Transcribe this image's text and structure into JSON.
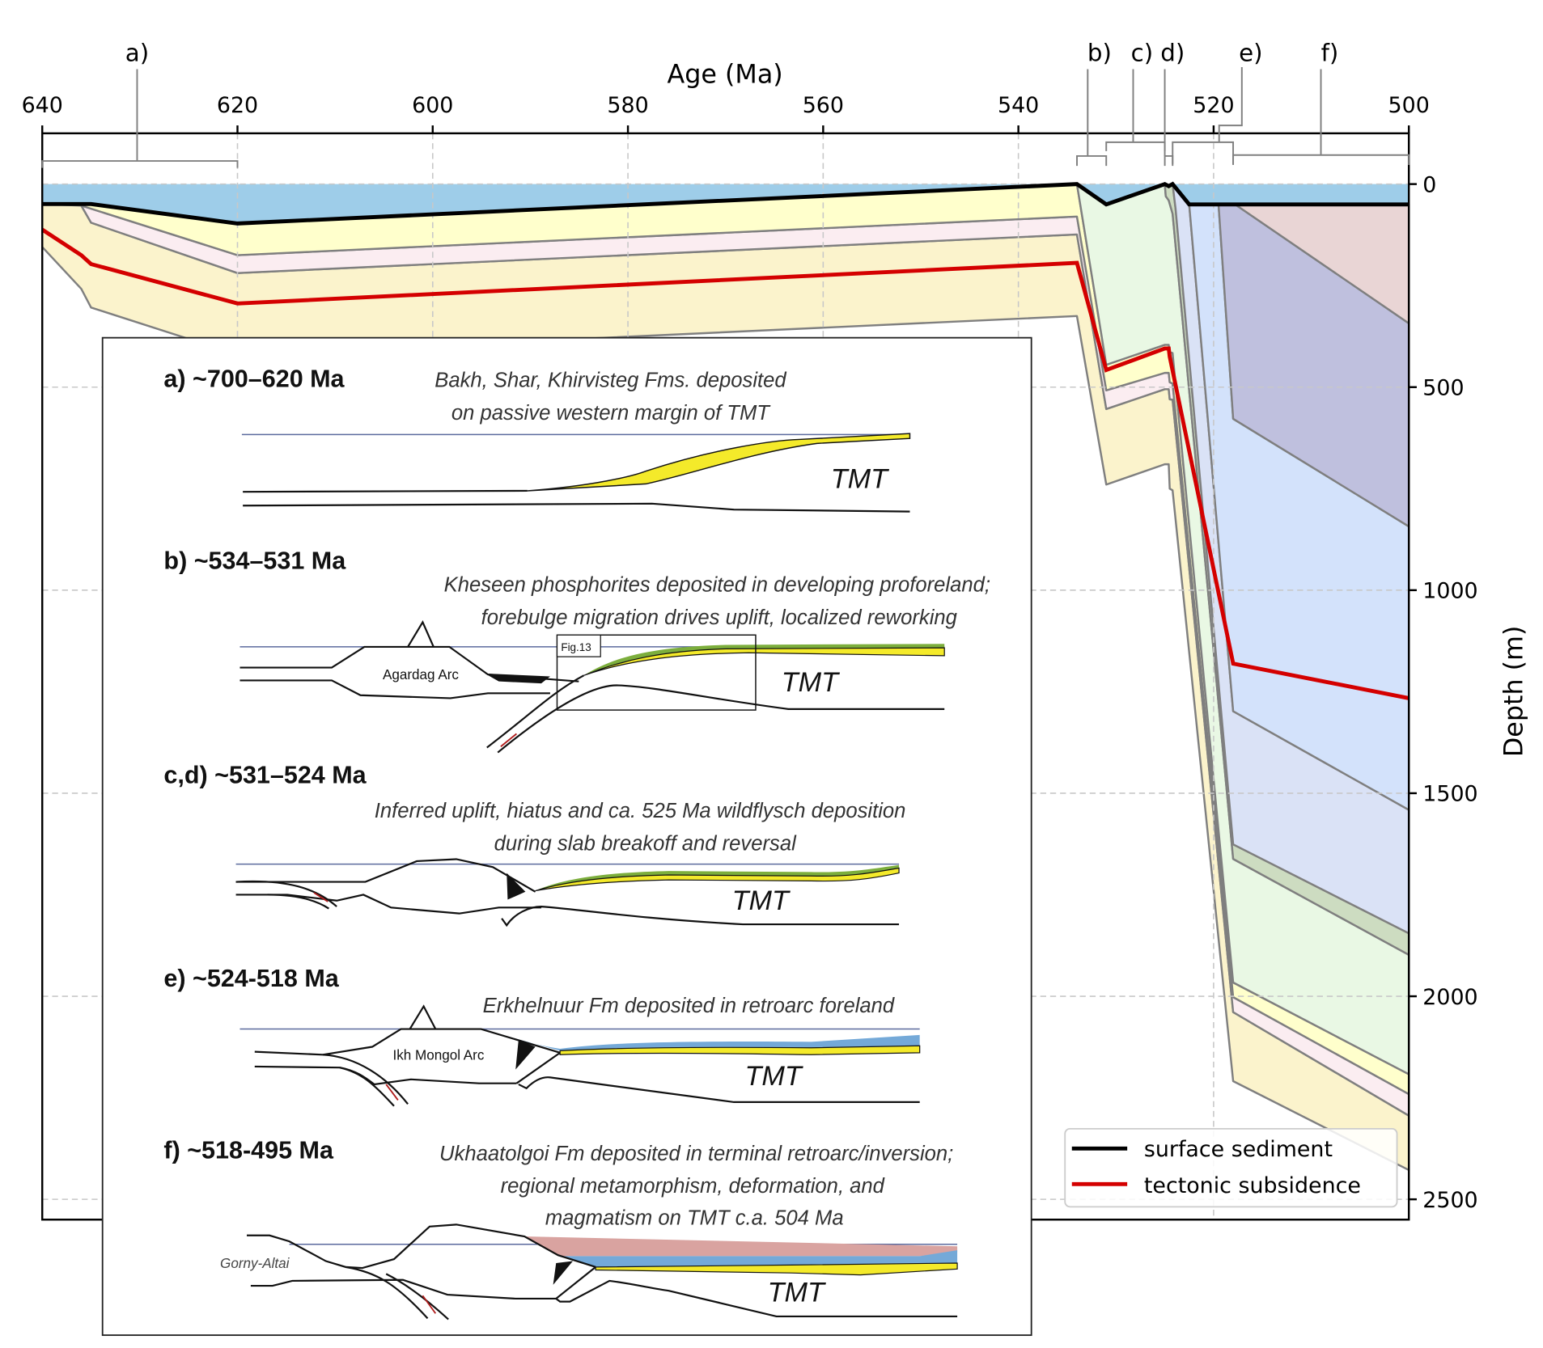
{
  "chart_data": {
    "type": "area",
    "xlabel": "Age (Ma)",
    "ylabel": "Depth (m)",
    "xlim": [
      640,
      500
    ],
    "ylim": [
      -125,
      2550
    ],
    "y_inverted": true,
    "x_axis_position": "top",
    "y_axis_position": "right",
    "xticks": [
      640,
      620,
      600,
      580,
      560,
      540,
      520,
      500
    ],
    "yticks": [
      0,
      500,
      1000,
      1500,
      2000,
      2500
    ],
    "grid": true,
    "legend": {
      "position": "bottom-right"
    },
    "water_fill": "#9ecde9",
    "series": [
      {
        "name": "surface sediment",
        "color": "#000000",
        "points": [
          [
            640,
            49
          ],
          [
            635,
            49
          ],
          [
            620,
            97
          ],
          [
            534,
            0
          ],
          [
            531,
            50
          ],
          [
            525,
            0
          ],
          [
            524.6,
            5
          ],
          [
            524.2,
            0
          ],
          [
            522.5,
            50
          ],
          [
            500,
            50
          ]
        ]
      },
      {
        "name": "tectonic subsidence",
        "color": "#d40000",
        "points": [
          [
            640,
            112
          ],
          [
            636,
            175
          ],
          [
            635,
            197
          ],
          [
            620,
            294
          ],
          [
            534,
            194
          ],
          [
            531,
            458
          ],
          [
            525,
            405
          ],
          [
            524.6,
            405
          ],
          [
            524.5,
            425
          ],
          [
            518,
            1181
          ],
          [
            500,
            1266
          ]
        ]
      }
    ],
    "layers": [
      {
        "fill": "#fbf3cc",
        "top": [
          [
            640,
            49
          ],
          [
            636,
            53
          ],
          [
            635,
            95
          ],
          [
            620,
            219
          ],
          [
            534,
            124
          ],
          [
            531,
            554
          ],
          [
            525,
            505
          ],
          [
            524.6,
            505
          ],
          [
            524.5,
            530
          ],
          [
            524.2,
            531
          ],
          [
            518,
            2039
          ],
          [
            500,
            2294
          ]
        ],
        "bottom": [
          [
            640,
            155
          ],
          [
            636,
            258
          ],
          [
            635,
            304
          ],
          [
            620,
            420
          ],
          [
            534,
            325
          ],
          [
            531,
            740
          ],
          [
            525,
            690
          ],
          [
            524.6,
            690
          ],
          [
            524.5,
            750
          ],
          [
            524.2,
            754
          ],
          [
            518,
            2209
          ],
          [
            500,
            2428
          ]
        ]
      },
      {
        "fill": "#fbedf1",
        "top": [
          [
            636,
            53
          ],
          [
            620,
            175
          ],
          [
            534,
            80
          ],
          [
            531,
            508
          ],
          [
            525,
            465
          ],
          [
            524.6,
            465
          ],
          [
            524.5,
            488
          ],
          [
            524.2,
            491
          ],
          [
            518,
            2002
          ],
          [
            500,
            2241
          ]
        ],
        "bottom": [
          [
            636,
            53
          ],
          [
            635,
            95
          ],
          [
            620,
            219
          ],
          [
            534,
            124
          ],
          [
            531,
            554
          ],
          [
            525,
            505
          ],
          [
            524.6,
            505
          ],
          [
            524.5,
            530
          ],
          [
            524.2,
            531
          ],
          [
            518,
            2039
          ],
          [
            500,
            2294
          ]
        ]
      },
      {
        "fill": "#ffffcc",
        "top": [
          [
            636,
            53
          ],
          [
            635,
            49
          ],
          [
            620,
            97
          ],
          [
            534,
            0
          ],
          [
            531,
            445
          ],
          [
            525,
            396
          ],
          [
            524.6,
            396
          ],
          [
            524.5,
            414
          ],
          [
            524.2,
            416
          ],
          [
            518,
            1966
          ],
          [
            500,
            2192
          ]
        ],
        "bottom": [
          [
            636,
            53
          ],
          [
            620,
            175
          ],
          [
            534,
            80
          ],
          [
            531,
            508
          ],
          [
            525,
            465
          ],
          [
            524.6,
            465
          ],
          [
            524.5,
            488
          ],
          [
            524.2,
            491
          ],
          [
            518,
            2002
          ],
          [
            500,
            2241
          ]
        ]
      },
      {
        "fill": "#e9f8e4",
        "top": [
          [
            534,
            0
          ],
          [
            531,
            50
          ],
          [
            525,
            0
          ],
          [
            524.9,
            30
          ],
          [
            524.6,
            40
          ],
          [
            524.2,
            73
          ],
          [
            518,
            1662
          ],
          [
            500,
            1898
          ]
        ],
        "bottom": [
          [
            534,
            0
          ],
          [
            531,
            445
          ],
          [
            525,
            396
          ],
          [
            524.6,
            396
          ],
          [
            524.5,
            414
          ],
          [
            524.2,
            416
          ],
          [
            518,
            1966
          ],
          [
            500,
            2192
          ]
        ]
      },
      {
        "fill": "#cddcc1",
        "top": [
          [
            525,
            0
          ],
          [
            524.6,
            5
          ],
          [
            524.2,
            0
          ],
          [
            523.9,
            60
          ],
          [
            518,
            1626
          ],
          [
            500,
            1845
          ]
        ],
        "bottom": [
          [
            525,
            0
          ],
          [
            524.9,
            30
          ],
          [
            524.6,
            40
          ],
          [
            524.2,
            73
          ],
          [
            518,
            1662
          ],
          [
            500,
            1898
          ]
        ]
      },
      {
        "fill": "#dae2f6",
        "top": [
          [
            524.2,
            0
          ],
          [
            522.5,
            50
          ],
          [
            518,
            1298
          ],
          [
            500,
            1541
          ]
        ],
        "bottom": [
          [
            524.2,
            0
          ],
          [
            523.9,
            60
          ],
          [
            518,
            1626
          ],
          [
            500,
            1845
          ]
        ]
      },
      {
        "fill": "#d3e2fb",
        "top": [
          [
            522.5,
            50
          ],
          [
            519.5,
            50
          ],
          [
            518,
            578
          ],
          [
            500,
            843
          ]
        ],
        "bottom": [
          [
            522.5,
            50
          ],
          [
            518,
            1298
          ],
          [
            500,
            1541
          ]
        ]
      },
      {
        "fill": "#bfc0de",
        "top": [
          [
            519.5,
            50
          ],
          [
            517.8,
            50
          ],
          [
            500,
            343
          ]
        ],
        "bottom": [
          [
            519.5,
            50
          ],
          [
            518,
            578
          ],
          [
            500,
            843
          ]
        ]
      },
      {
        "fill": "#e9d5d5",
        "top": [
          [
            517.8,
            50
          ],
          [
            500,
            50
          ]
        ],
        "bottom": [
          [
            517.8,
            50
          ],
          [
            500,
            343
          ]
        ]
      }
    ],
    "periods": [
      {
        "label": "a)",
        "from": 640,
        "to": 620
      },
      {
        "label": "b)",
        "from": 534,
        "to": 531
      },
      {
        "label": "c)",
        "from": 531,
        "to": 525
      },
      {
        "label": "d)",
        "from": 525,
        "to": 524.2
      },
      {
        "label": "e)",
        "from": 524.2,
        "to": 518
      },
      {
        "label": "f)",
        "from": 518,
        "to": 500
      }
    ]
  },
  "inset": {
    "panels": [
      {
        "title": "a) ~700–620 Ma",
        "description": [
          "Bakh, Shar, Khirvisteg Fms. deposited",
          "on passive western margin of TMT"
        ],
        "terrane": "TMT"
      },
      {
        "title": "b) ~534–531 Ma",
        "description": [
          "Kheseen phosphorites deposited in developing proforeland;",
          "forebulge migration drives uplift, localized reworking"
        ],
        "terrane": "TMT",
        "arc": "Agardag Arc",
        "figure_ref": "Fig.13"
      },
      {
        "title": "c,d) ~531–524 Ma",
        "description": [
          "Inferred uplift, hiatus and ca. 525 Ma wildflysch deposition",
          "during slab breakoff and reversal"
        ],
        "terrane": "TMT"
      },
      {
        "title": "e) ~524-518 Ma",
        "description": [
          "Erkhelnuur Fm deposited in retroarc foreland"
        ],
        "terrane": "TMT",
        "arc": "Ikh Mongol Arc"
      },
      {
        "title": "f) ~518-495 Ma",
        "description": [
          "Ukhaatolgoi Fm deposited in terminal retroarc/inversion;",
          "regional metamorphism, deformation, and",
          "magmatism on TMT c.a. 504 Ma"
        ],
        "terrane": "TMT",
        "block": "Gorny-Altai"
      }
    ],
    "colors": {
      "yellow": "#f4ea2a",
      "green": "#7cae3c",
      "blue": "#74a9d8",
      "pink": "#d9a3a0",
      "arrow": "#b01c1c"
    }
  }
}
